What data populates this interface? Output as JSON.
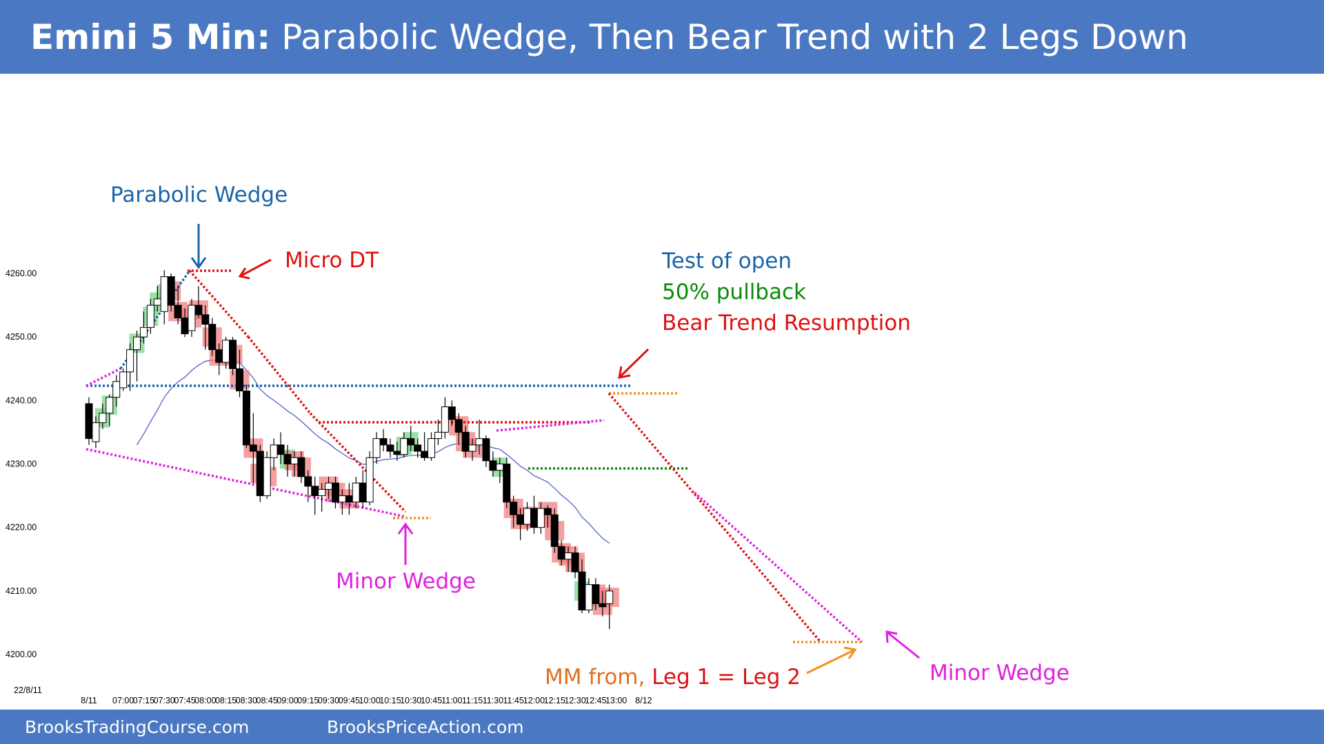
{
  "header": {
    "title_bold": "Emini 5 Min:",
    "title_rest": " Parabolic Wedge, Then Bear Trend with 2 Legs Down"
  },
  "footer": {
    "left_site": "BrooksTradingCourse.com",
    "right_site": "BrooksPriceAction.com"
  },
  "date_label": "22/8/11",
  "colors": {
    "header_bg": "#4a78c2",
    "bull_box": "#7bd68a",
    "bear_box": "#f08080",
    "ema": "#5060c8",
    "magenta": "#e020e0",
    "blue": "#1a64a8",
    "red": "#e01010",
    "green": "#0a8a0a",
    "orange": "#f09020"
  },
  "annotations": {
    "parabolic_wedge": "Parabolic Wedge",
    "micro_dt": "Micro DT",
    "test_of_open": "Test of open",
    "pullback": "50% pullback",
    "resumption": "Bear Trend Resumption",
    "minor_wedge_1": "Minor Wedge",
    "minor_wedge_2": "Minor Wedge",
    "mm_prefix": "MM from,",
    "mm_legs": " Leg 1 = Leg 2"
  },
  "chart_data": {
    "type": "candlestick",
    "y_ticks": [
      "4260.00",
      "4250.00",
      "4240.00",
      "4230.00",
      "4220.00",
      "4210.00",
      "4200.00"
    ],
    "y_tick_values": [
      4260,
      4250,
      4240,
      4230,
      4220,
      4210,
      4200
    ],
    "ylim": [
      4196,
      4278
    ],
    "x_ticks": [
      "8/11",
      "07:00",
      "07:15",
      "07:30",
      "07:45",
      "08:00",
      "08:15",
      "08:30",
      "08:45",
      "09:00",
      "09:15",
      "09:30",
      "09:45",
      "10:00",
      "10:15",
      "10:30",
      "10:45",
      "11:00",
      "11:15",
      "11:30",
      "11:45",
      "12:00",
      "12:15",
      "12:30",
      "12:45",
      "13:00",
      "8/12"
    ],
    "x_tick_bars": [
      0,
      5,
      8,
      11,
      14,
      17,
      20,
      23,
      26,
      29,
      32,
      35,
      38,
      41,
      44,
      47,
      50,
      53,
      56,
      59,
      62,
      65,
      68,
      71,
      74,
      77,
      81
    ],
    "candles": [
      {
        "o": 4239.5,
        "h": 4240.5,
        "l": 4233,
        "c": 4234
      },
      {
        "o": 4233.5,
        "h": 4237.5,
        "l": 4232.5,
        "c": 4236.5
      },
      {
        "o": 4236.5,
        "h": 4239.5,
        "l": 4235.5,
        "c": 4238
      },
      {
        "o": 4238,
        "h": 4241,
        "l": 4236,
        "c": 4240.5
      },
      {
        "o": 4240.5,
        "h": 4244,
        "l": 4239,
        "c": 4243
      },
      {
        "o": 4242,
        "h": 4245,
        "l": 4241.5,
        "c": 4244.5
      },
      {
        "o": 4244.5,
        "h": 4249,
        "l": 4241.5,
        "c": 4248
      },
      {
        "o": 4248,
        "h": 4251,
        "l": 4243,
        "c": 4250
      },
      {
        "o": 4250,
        "h": 4254,
        "l": 4249,
        "c": 4251.5
      },
      {
        "o": 4251.5,
        "h": 4256,
        "l": 4250.5,
        "c": 4255
      },
      {
        "o": 4255,
        "h": 4258,
        "l": 4254,
        "c": 4256
      },
      {
        "o": 4254,
        "h": 4260.5,
        "l": 4252,
        "c": 4259.5
      },
      {
        "o": 4259.5,
        "h": 4260,
        "l": 4254,
        "c": 4255
      },
      {
        "o": 4255,
        "h": 4258,
        "l": 4252,
        "c": 4253
      },
      {
        "o": 4253,
        "h": 4254.5,
        "l": 4250,
        "c": 4250.5
      },
      {
        "o": 4251,
        "h": 4256,
        "l": 4250,
        "c": 4255
      },
      {
        "o": 4255,
        "h": 4258,
        "l": 4253,
        "c": 4253.5
      },
      {
        "o": 4253.5,
        "h": 4255,
        "l": 4248,
        "c": 4252
      },
      {
        "o": 4252,
        "h": 4253,
        "l": 4247,
        "c": 4248
      },
      {
        "o": 4248,
        "h": 4249,
        "l": 4244,
        "c": 4246
      },
      {
        "o": 4246,
        "h": 4250,
        "l": 4245,
        "c": 4249.5
      },
      {
        "o": 4249.5,
        "h": 4250,
        "l": 4244,
        "c": 4245
      },
      {
        "o": 4245,
        "h": 4248,
        "l": 4240.5,
        "c": 4241.5
      },
      {
        "o": 4241.5,
        "h": 4242.5,
        "l": 4232.5,
        "c": 4233
      },
      {
        "o": 4233,
        "h": 4238,
        "l": 4227,
        "c": 4232
      },
      {
        "o": 4232,
        "h": 4233,
        "l": 4224,
        "c": 4225
      },
      {
        "o": 4225,
        "h": 4232,
        "l": 4224.5,
        "c": 4231
      },
      {
        "o": 4231,
        "h": 4234,
        "l": 4229,
        "c": 4233
      },
      {
        "o": 4233,
        "h": 4235,
        "l": 4230,
        "c": 4231.5
      },
      {
        "o": 4231.5,
        "h": 4233,
        "l": 4228,
        "c": 4230
      },
      {
        "o": 4230,
        "h": 4232,
        "l": 4228,
        "c": 4231
      },
      {
        "o": 4231,
        "h": 4232,
        "l": 4227,
        "c": 4228
      },
      {
        "o": 4228,
        "h": 4229,
        "l": 4224,
        "c": 4226.5
      },
      {
        "o": 4226.5,
        "h": 4228,
        "l": 4222,
        "c": 4225
      },
      {
        "o": 4225,
        "h": 4227,
        "l": 4222.5,
        "c": 4226
      },
      {
        "o": 4226,
        "h": 4228,
        "l": 4224.5,
        "c": 4227
      },
      {
        "o": 4227,
        "h": 4228,
        "l": 4223,
        "c": 4224
      },
      {
        "o": 4224,
        "h": 4226,
        "l": 4222,
        "c": 4225
      },
      {
        "o": 4225,
        "h": 4227,
        "l": 4222,
        "c": 4224
      },
      {
        "o": 4224,
        "h": 4228,
        "l": 4223,
        "c": 4227
      },
      {
        "o": 4227,
        "h": 4229,
        "l": 4223,
        "c": 4224
      },
      {
        "o": 4224,
        "h": 4232,
        "l": 4223.5,
        "c": 4231
      },
      {
        "o": 4231,
        "h": 4235,
        "l": 4230,
        "c": 4234
      },
      {
        "o": 4234,
        "h": 4235.5,
        "l": 4232,
        "c": 4233
      },
      {
        "o": 4233,
        "h": 4234,
        "l": 4231,
        "c": 4232
      },
      {
        "o": 4232,
        "h": 4233.5,
        "l": 4230.5,
        "c": 4231.5
      },
      {
        "o": 4231.5,
        "h": 4235,
        "l": 4231,
        "c": 4234
      },
      {
        "o": 4234,
        "h": 4236,
        "l": 4232,
        "c": 4233
      },
      {
        "o": 4233,
        "h": 4234,
        "l": 4231,
        "c": 4232
      },
      {
        "o": 4232,
        "h": 4235,
        "l": 4230.5,
        "c": 4231
      },
      {
        "o": 4231,
        "h": 4235,
        "l": 4230.5,
        "c": 4234
      },
      {
        "o": 4234,
        "h": 4237,
        "l": 4233,
        "c": 4235
      },
      {
        "o": 4235,
        "h": 4240.5,
        "l": 4234,
        "c": 4239
      },
      {
        "o": 4239,
        "h": 4240,
        "l": 4236,
        "c": 4237
      },
      {
        "o": 4237,
        "h": 4238,
        "l": 4233,
        "c": 4235
      },
      {
        "o": 4235,
        "h": 4236,
        "l": 4231,
        "c": 4232
      },
      {
        "o": 4232,
        "h": 4234,
        "l": 4230.5,
        "c": 4233
      },
      {
        "o": 4233,
        "h": 4237,
        "l": 4231.5,
        "c": 4234
      },
      {
        "o": 4234,
        "h": 4234.5,
        "l": 4229.5,
        "c": 4230.5
      },
      {
        "o": 4230.5,
        "h": 4232,
        "l": 4228,
        "c": 4229
      },
      {
        "o": 4229,
        "h": 4231,
        "l": 4227,
        "c": 4230
      },
      {
        "o": 4230,
        "h": 4231,
        "l": 4223,
        "c": 4224
      },
      {
        "o": 4224,
        "h": 4225,
        "l": 4220,
        "c": 4222
      },
      {
        "o": 4222,
        "h": 4223,
        "l": 4218,
        "c": 4220.5
      },
      {
        "o": 4220.5,
        "h": 4224,
        "l": 4219.5,
        "c": 4223
      },
      {
        "o": 4223,
        "h": 4225,
        "l": 4219,
        "c": 4220
      },
      {
        "o": 4220,
        "h": 4224,
        "l": 4219,
        "c": 4223
      },
      {
        "o": 4223,
        "h": 4223.5,
        "l": 4220,
        "c": 4222
      },
      {
        "o": 4222,
        "h": 4223,
        "l": 4216,
        "c": 4217
      },
      {
        "o": 4217,
        "h": 4218,
        "l": 4214,
        "c": 4215
      },
      {
        "o": 4215,
        "h": 4217,
        "l": 4213,
        "c": 4216
      },
      {
        "o": 4216,
        "h": 4217,
        "l": 4212,
        "c": 4213
      },
      {
        "o": 4213,
        "h": 4215,
        "l": 4206.5,
        "c": 4207
      },
      {
        "o": 4207,
        "h": 4212,
        "l": 4206.5,
        "c": 4211
      },
      {
        "o": 4211,
        "h": 4212,
        "l": 4207,
        "c": 4208
      },
      {
        "o": 4208,
        "h": 4210,
        "l": 4206,
        "c": 4207.5
      },
      {
        "o": 4208,
        "h": 4211,
        "l": 4204,
        "c": 4210
      }
    ]
  }
}
